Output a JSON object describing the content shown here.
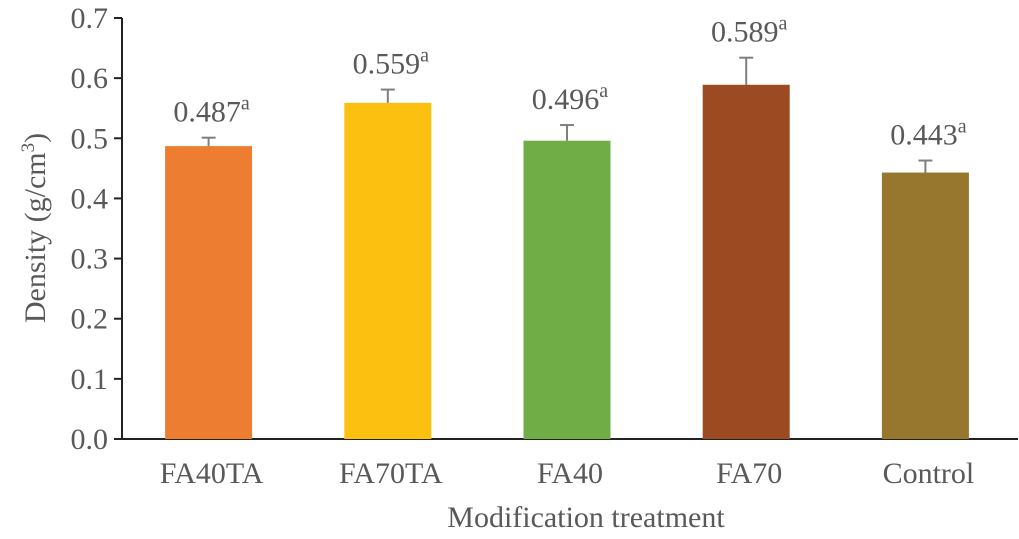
{
  "chart_data": {
    "type": "bar",
    "title": "",
    "xlabel": "Modification treatment",
    "ylabel": "Density (g/cm",
    "ylabel_sup": "3",
    "ylabel_end": ")",
    "ylim": [
      0,
      0.7
    ],
    "yticks": [
      "0.0",
      "0.1",
      "0.2",
      "0.3",
      "0.4",
      "0.5",
      "0.6",
      "0.7"
    ],
    "categories": [
      "FA40TA",
      "FA70TA",
      "FA40",
      "FA70",
      "Control"
    ],
    "values": [
      0.487,
      0.559,
      0.496,
      0.589,
      0.443
    ],
    "errors": [
      0.014,
      0.022,
      0.026,
      0.045,
      0.02
    ],
    "data_labels": [
      "0.487",
      "0.559",
      "0.496",
      "0.589",
      "0.443"
    ],
    "significance": [
      "a",
      "a",
      "a",
      "a",
      "a"
    ],
    "colors": [
      "#ED7D31",
      "#FCC010",
      "#70AD47",
      "#9C4A22",
      "#97762E"
    ],
    "grid": false
  }
}
